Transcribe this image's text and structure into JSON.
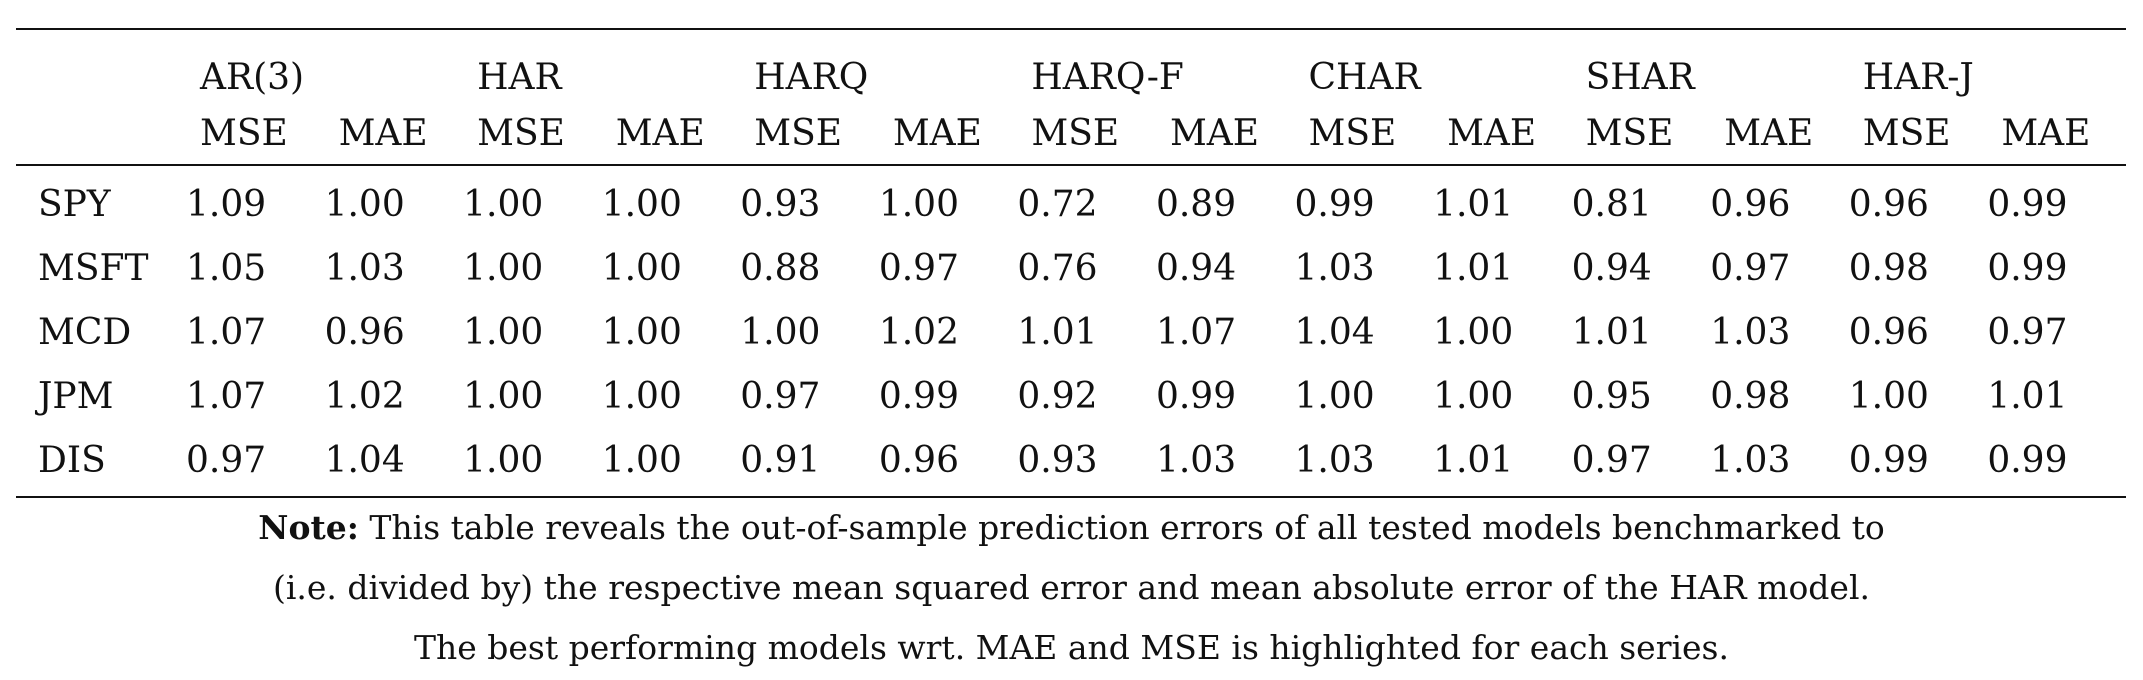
{
  "table": {
    "models": [
      "AR(3)",
      "HAR",
      "HARQ",
      "HARQ-F",
      "CHAR",
      "SHAR",
      "HAR-J"
    ],
    "metrics": [
      "MSE",
      "MAE"
    ],
    "rows": [
      {
        "series": "SPY",
        "values": [
          "1.09",
          "1.00",
          "1.00",
          "1.00",
          "0.93",
          "1.00",
          "0.72",
          "0.89",
          "0.99",
          "1.01",
          "0.81",
          "0.96",
          "0.96",
          "0.99"
        ],
        "best": [
          6,
          7
        ]
      },
      {
        "series": "MSFT",
        "values": [
          "1.05",
          "1.03",
          "1.00",
          "1.00",
          "0.88",
          "0.97",
          "0.76",
          "0.94",
          "1.03",
          "1.01",
          "0.94",
          "0.97",
          "0.98",
          "0.99"
        ],
        "best": [
          6,
          7
        ]
      },
      {
        "series": "MCD",
        "values": [
          "1.07",
          "0.96",
          "1.00",
          "1.00",
          "1.00",
          "1.02",
          "1.01",
          "1.07",
          "1.04",
          "1.00",
          "1.01",
          "1.03",
          "0.96",
          "0.97"
        ],
        "best": [
          1,
          12
        ]
      },
      {
        "series": "JPM",
        "values": [
          "1.07",
          "1.02",
          "1.00",
          "1.00",
          "0.97",
          "0.99",
          "0.92",
          "0.99",
          "1.00",
          "1.00",
          "0.95",
          "0.98",
          "1.00",
          "1.01"
        ],
        "best": [
          6,
          11
        ]
      },
      {
        "series": "DIS",
        "values": [
          "0.97",
          "1.04",
          "1.00",
          "1.00",
          "0.91",
          "0.96",
          "0.93",
          "1.03",
          "1.03",
          "1.01",
          "0.97",
          "1.03",
          "0.99",
          "0.99"
        ],
        "best": [
          4,
          5
        ]
      }
    ]
  },
  "note": {
    "label": "Note:",
    "line1": "This table reveals the out-of-sample prediction errors of all tested models benchmarked to",
    "line2": "(i.e. divided by) the respective mean squared error and mean absolute error of the HAR model.",
    "line3": "The best performing models wrt. MAE and MSE is highlighted for each series."
  }
}
